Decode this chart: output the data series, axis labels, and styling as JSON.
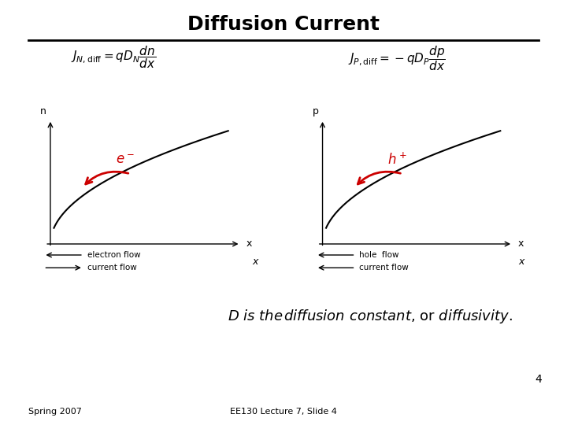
{
  "title": "Diffusion Current",
  "title_fontsize": 18,
  "bg_color": "#ffffff",
  "slide_number": "4",
  "footer_left": "Spring 2007",
  "footer_center": "EE130 Lecture 7, Slide 4",
  "left_formula": "$J_{N,\\mathrm{diff}} = qD_N \\dfrac{dn}{dx}$",
  "right_formula": "$J_{P,\\mathrm{diff}} = -qD_P \\dfrac{dp}{dx}$",
  "left_ylabel": "n",
  "right_ylabel": "p",
  "arrow_color": "#cc0000",
  "curve_color": "#000000",
  "left_legend_line1": "electron flow",
  "left_legend_line2": "current flow",
  "right_legend_line1": "hole  flow",
  "right_legend_line2": "current flow",
  "bottom_text": "D is the diffusion constant, or diffusivity."
}
